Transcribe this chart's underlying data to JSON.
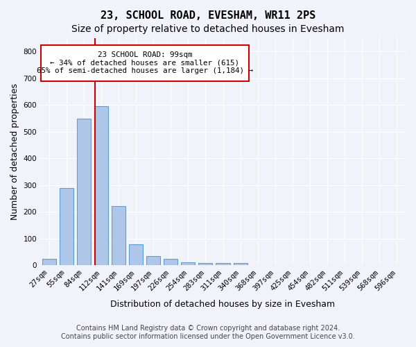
{
  "title": "23, SCHOOL ROAD, EVESHAM, WR11 2PS",
  "subtitle": "Size of property relative to detached houses in Evesham",
  "xlabel": "Distribution of detached houses by size in Evesham",
  "ylabel": "Number of detached properties",
  "categories": [
    "27sqm",
    "55sqm",
    "84sqm",
    "112sqm",
    "141sqm",
    "169sqm",
    "197sqm",
    "226sqm",
    "254sqm",
    "283sqm",
    "311sqm",
    "340sqm",
    "368sqm",
    "397sqm",
    "425sqm",
    "454sqm",
    "482sqm",
    "511sqm",
    "539sqm",
    "568sqm",
    "596sqm"
  ],
  "values": [
    25,
    288,
    548,
    595,
    222,
    80,
    35,
    25,
    12,
    10,
    8,
    8,
    0,
    0,
    0,
    0,
    0,
    0,
    0,
    0,
    0
  ],
  "bar_color": "#aec6e8",
  "bar_edge_color": "#5a9fd4",
  "property_line_x": 2.66,
  "property_line_color": "#cc0000",
  "annotation_line1": "23 SCHOOL ROAD: 99sqm",
  "annotation_line2": "← 34% of detached houses are smaller (615)",
  "annotation_line3": "65% of semi-detached houses are larger (1,184) →",
  "annotation_box_color": "#ffffff",
  "annotation_box_edge": "#cc0000",
  "ylim": [
    0,
    850
  ],
  "yticks": [
    0,
    100,
    200,
    300,
    400,
    500,
    600,
    700,
    800
  ],
  "footer_line1": "Contains HM Land Registry data © Crown copyright and database right 2024.",
  "footer_line2": "Contains public sector information licensed under the Open Government Licence v3.0.",
  "background_color": "#f0f4fa",
  "grid_color": "#ffffff",
  "title_fontsize": 11,
  "subtitle_fontsize": 10,
  "tick_fontsize": 7.5,
  "ylabel_fontsize": 9,
  "xlabel_fontsize": 9,
  "footer_fontsize": 7
}
